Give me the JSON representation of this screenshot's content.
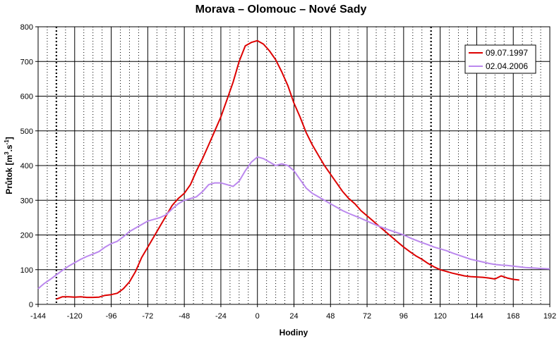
{
  "chart_data": {
    "type": "line",
    "title": "Morava – Olomouc – Nové Sady",
    "xlabel": "Hodiny",
    "ylabel_main": "Průtok [m",
    "ylabel_sup1": "3",
    "ylabel_mid": ".s",
    "ylabel_sup2": "-1",
    "ylabel_end": "]",
    "xlim": [
      -144,
      192
    ],
    "ylim": [
      0,
      800
    ],
    "x_ticks": [
      -144,
      -120,
      -96,
      -72,
      -48,
      -24,
      0,
      24,
      48,
      72,
      96,
      120,
      144,
      168,
      192
    ],
    "y_ticks": [
      0,
      100,
      200,
      300,
      400,
      500,
      600,
      700,
      800
    ],
    "grid": true,
    "legend_position": "top-right",
    "series": [
      {
        "name": "09.07.1997",
        "color": "#dd0000",
        "x": [
          -132,
          -128,
          -124,
          -120,
          -116,
          -112,
          -108,
          -104,
          -100,
          -96,
          -92,
          -88,
          -84,
          -80,
          -76,
          -72,
          -68,
          -64,
          -60,
          -56,
          -52,
          -48,
          -44,
          -40,
          -36,
          -32,
          -28,
          -24,
          -20,
          -16,
          -12,
          -8,
          -4,
          0,
          4,
          8,
          12,
          16,
          20,
          24,
          28,
          32,
          36,
          40,
          44,
          48,
          52,
          56,
          60,
          64,
          68,
          72,
          76,
          80,
          84,
          88,
          92,
          96,
          100,
          104,
          108,
          112,
          116,
          120,
          124,
          128,
          132,
          136,
          140,
          144,
          148,
          152,
          156,
          160,
          164,
          168,
          172
        ],
        "values": [
          15,
          22,
          22,
          21,
          22,
          20,
          20,
          21,
          26,
          28,
          32,
          45,
          65,
          95,
          135,
          165,
          195,
          225,
          255,
          285,
          305,
          320,
          345,
          385,
          420,
          460,
          500,
          540,
          590,
          640,
          700,
          745,
          755,
          760,
          750,
          730,
          705,
          670,
          630,
          580,
          540,
          495,
          460,
          430,
          400,
          375,
          350,
          325,
          305,
          290,
          270,
          255,
          240,
          225,
          210,
          195,
          180,
          165,
          152,
          140,
          130,
          118,
          108,
          100,
          95,
          90,
          86,
          82,
          80,
          79,
          78,
          76,
          73,
          82,
          76,
          72,
          70
        ]
      },
      {
        "name": "02.04.2006",
        "color": "#bb88ee",
        "x": [
          -144,
          -140,
          -136,
          -132,
          -128,
          -124,
          -120,
          -116,
          -112,
          -108,
          -104,
          -100,
          -96,
          -92,
          -88,
          -84,
          -80,
          -76,
          -72,
          -68,
          -64,
          -60,
          -56,
          -52,
          -48,
          -44,
          -40,
          -36,
          -32,
          -28,
          -24,
          -20,
          -16,
          -12,
          -8,
          -4,
          0,
          4,
          8,
          12,
          16,
          20,
          24,
          28,
          32,
          36,
          40,
          44,
          48,
          52,
          56,
          60,
          64,
          68,
          72,
          76,
          80,
          84,
          88,
          92,
          96,
          100,
          104,
          108,
          112,
          116,
          120,
          124,
          128,
          132,
          136,
          140,
          144,
          148,
          152,
          156,
          160,
          164,
          168,
          172,
          176,
          180,
          184,
          188,
          192
        ],
        "values": [
          45,
          60,
          72,
          85,
          98,
          110,
          120,
          130,
          138,
          145,
          152,
          165,
          175,
          182,
          195,
          210,
          220,
          230,
          240,
          245,
          250,
          258,
          275,
          290,
          300,
          305,
          310,
          325,
          345,
          350,
          350,
          345,
          340,
          355,
          385,
          410,
          425,
          420,
          410,
          400,
          405,
          400,
          385,
          360,
          335,
          320,
          310,
          300,
          290,
          280,
          270,
          262,
          255,
          248,
          240,
          232,
          225,
          218,
          212,
          206,
          200,
          192,
          185,
          178,
          172,
          165,
          160,
          155,
          148,
          142,
          136,
          130,
          126,
          122,
          118,
          115,
          113,
          112,
          110,
          108,
          106,
          105,
          104,
          103,
          102
        ]
      }
    ]
  }
}
